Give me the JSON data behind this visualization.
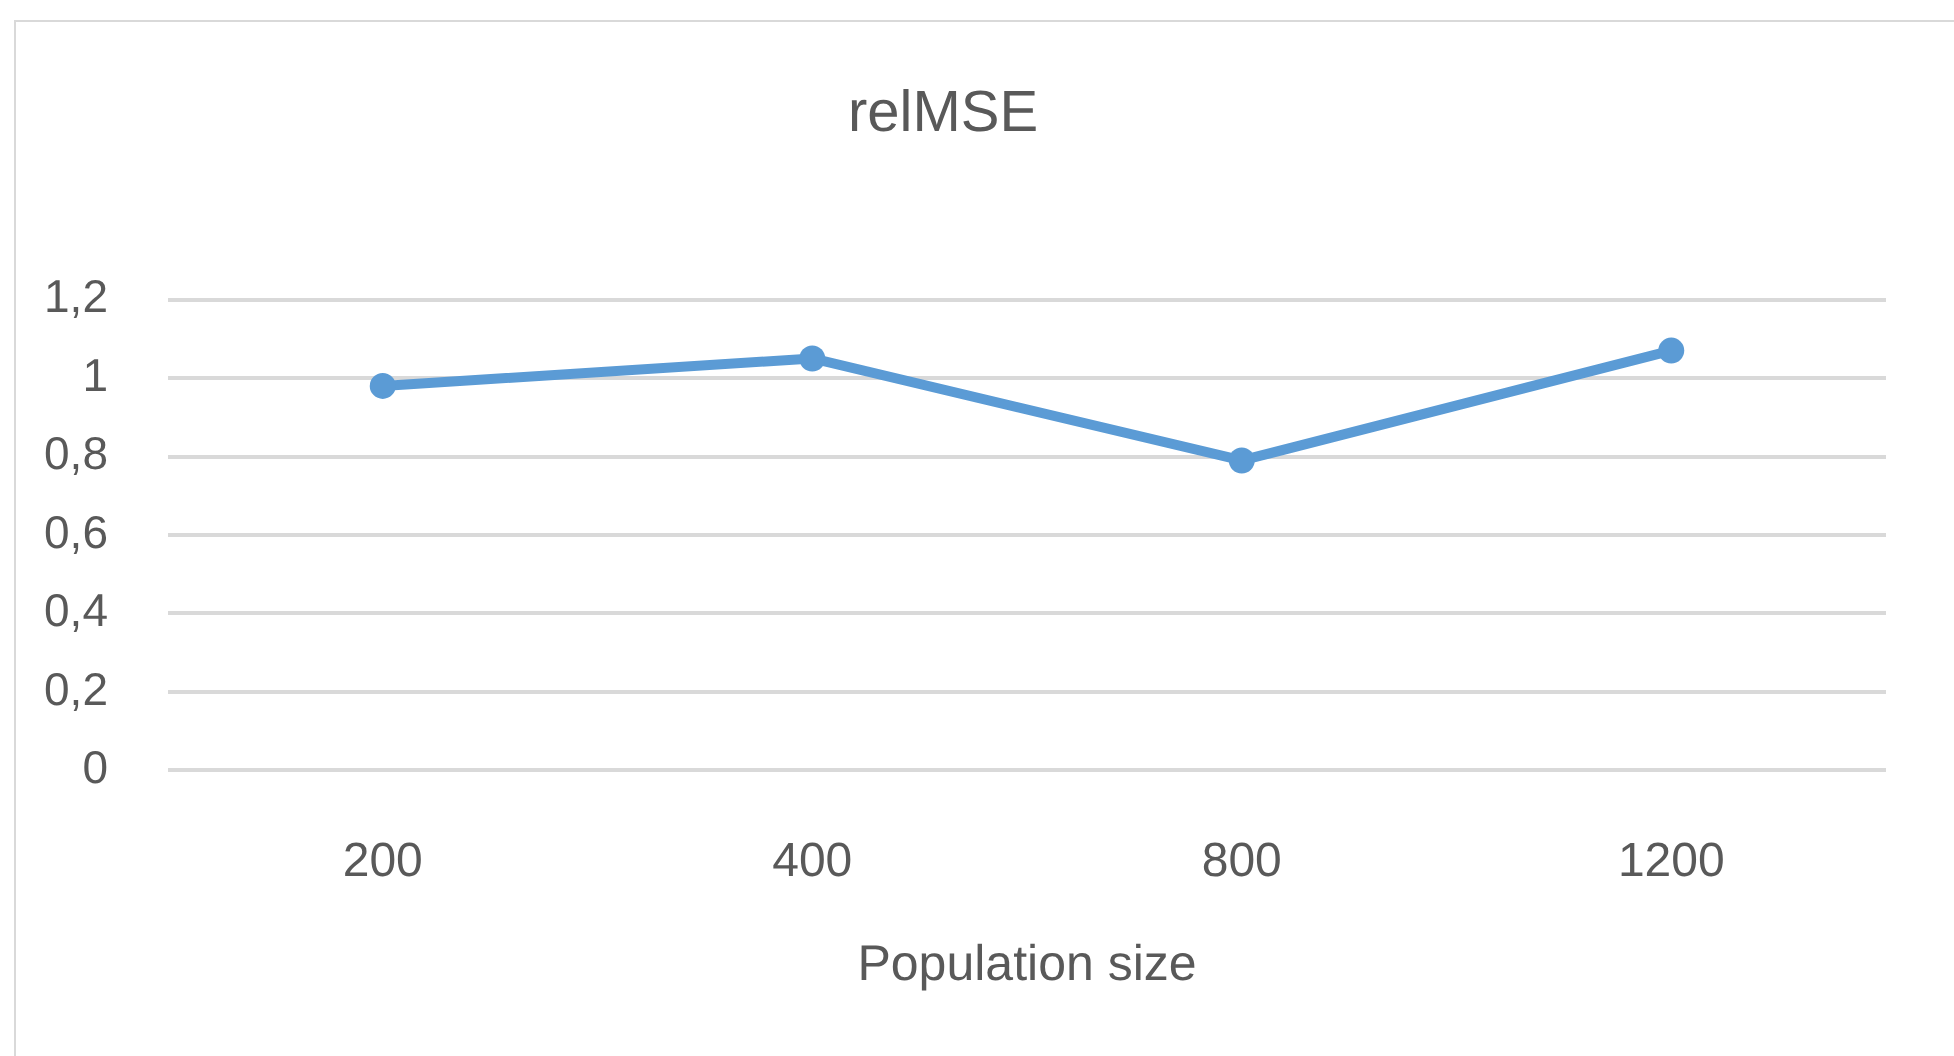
{
  "chart_data": {
    "type": "line",
    "title": "relMSE",
    "xlabel": "Population size",
    "categories": [
      "200",
      "400",
      "800",
      "1200"
    ],
    "series": [
      {
        "color": "#5b9bd5",
        "values": [
          0.98,
          1.05,
          0.79,
          1.07
        ]
      }
    ],
    "ylim": [
      0,
      1.2
    ],
    "yticks": [
      0,
      {
        "value": 0.2,
        "label": "0,2"
      },
      {
        "value": 0.4,
        "label": "0,4"
      },
      {
        "value": 0.6,
        "label": "0,6"
      },
      {
        "value": 0.8,
        "label": "0,8"
      },
      1,
      {
        "value": 1.2,
        "label": "1,2"
      }
    ],
    "grid": "y",
    "marker": "circle",
    "line_style": "solid"
  }
}
